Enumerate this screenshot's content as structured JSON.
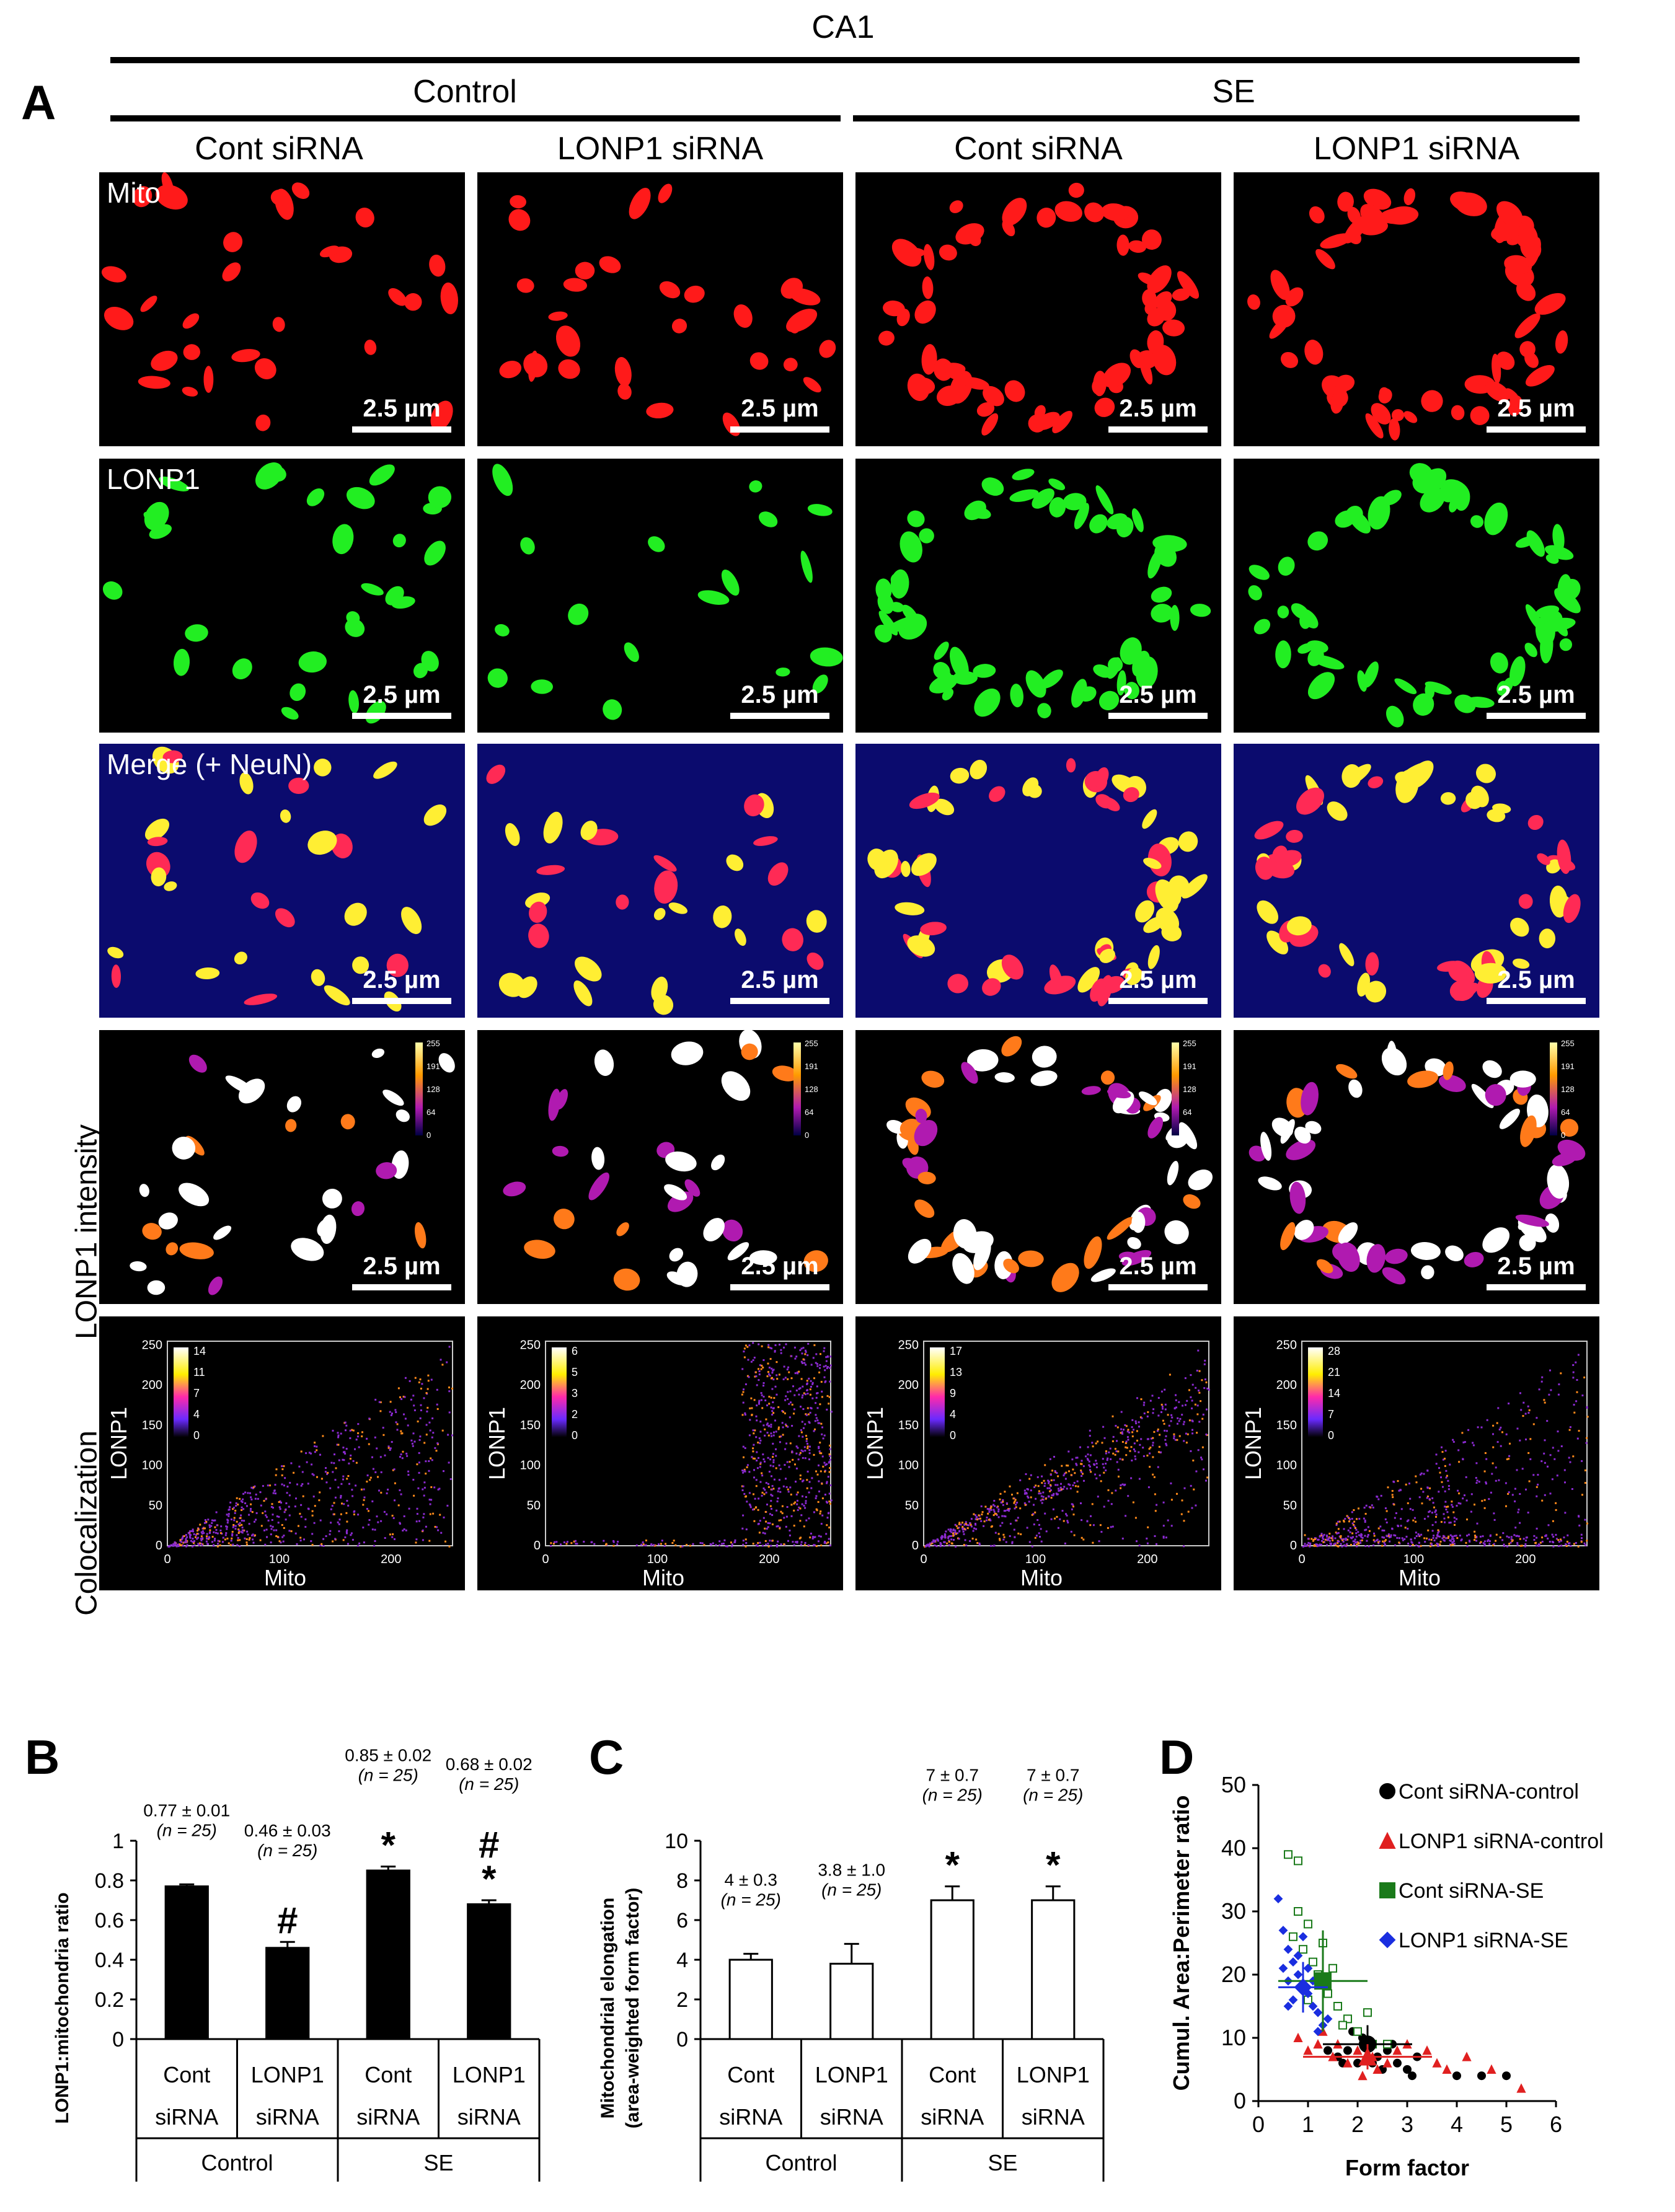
{
  "figure": {
    "region": "CA1",
    "panel_letter_a": "A",
    "groups": [
      "Control",
      "SE"
    ],
    "columns": [
      "Cont siRNA",
      "LONP1 siRNA",
      "Cont siRNA",
      "LONP1 siRNA"
    ],
    "channel_labels": {
      "mito": "Mito",
      "lonp1": "LONP1",
      "merge": "Merge (+ NeuN)"
    },
    "row_labels": {
      "intensity": "LONP1 intensity",
      "coloc": "Colocalization"
    },
    "scale_bar": "2.5 µm",
    "intensity_scale_ticks": [
      "255",
      "191",
      "128",
      "64",
      "0"
    ],
    "coloc_axes": {
      "xlabel": "Mito",
      "ylabel": "LONP1",
      "xticks": [
        "0",
        "100",
        "200"
      ],
      "yticks": [
        "250",
        "200",
        "150",
        "100",
        "50",
        "0"
      ]
    },
    "coloc_legends": [
      [
        "14",
        "11",
        "7",
        "4",
        "0"
      ],
      [
        "6",
        "5",
        "3",
        "2",
        "0"
      ],
      [
        "17",
        "13",
        "9",
        "4",
        "0"
      ],
      [
        "28",
        "21",
        "14",
        "7",
        "0"
      ]
    ],
    "colors": {
      "mito": "#ff1a1a",
      "lonp1": "#22ee22",
      "merge_bg": "#0b0b6e",
      "overlap": "#ffee33"
    }
  },
  "chart_data": [
    {
      "panel": "B",
      "type": "bar",
      "ylabel": "LONP1:mitochondria ratio",
      "ylim": [
        0,
        1
      ],
      "yticks": [
        "0",
        "0.2",
        "0.4",
        "0.6",
        "0.8",
        "1"
      ],
      "categories": [
        [
          "Cont",
          "siRNA"
        ],
        [
          "LONP1",
          "siRNA"
        ],
        [
          "Cont",
          "siRNA"
        ],
        [
          "LONP1",
          "siRNA"
        ]
      ],
      "groups": [
        "Control",
        "SE"
      ],
      "values": [
        0.77,
        0.46,
        0.85,
        0.68
      ],
      "errors": [
        0.01,
        0.03,
        0.02,
        0.02
      ],
      "annotations": [
        [
          "0.77 ± 0.01",
          "(n = 25)"
        ],
        [
          "0.46 ± 0.03",
          "(n = 25)"
        ],
        [
          "0.85 ± 0.02",
          "(n = 25)"
        ],
        [
          "0.68 ± 0.02",
          "(n = 25)"
        ]
      ],
      "significance": [
        "",
        "#",
        "*",
        "#*"
      ],
      "bar_color": "#000000"
    },
    {
      "panel": "C",
      "type": "bar",
      "ylabel": [
        "Mitochondrial elongation",
        "(area-weighted form factor)"
      ],
      "ylim": [
        0,
        10
      ],
      "yticks": [
        "0",
        "2",
        "4",
        "6",
        "8",
        "10"
      ],
      "categories": [
        [
          "Cont",
          "siRNA"
        ],
        [
          "LONP1",
          "siRNA"
        ],
        [
          "Cont",
          "siRNA"
        ],
        [
          "LONP1",
          "siRNA"
        ]
      ],
      "groups": [
        "Control",
        "SE"
      ],
      "values": [
        4.0,
        3.8,
        7.0,
        7.0
      ],
      "errors": [
        0.3,
        1.0,
        0.7,
        0.7
      ],
      "annotations": [
        [
          "4 ± 0.3",
          "(n = 25)"
        ],
        [
          "3.8 ± 1.0",
          "(n = 25)"
        ],
        [
          "7 ± 0.7",
          "(n = 25)"
        ],
        [
          "7 ± 0.7",
          "(n = 25)"
        ]
      ],
      "significance": [
        "",
        "",
        "*",
        "*"
      ],
      "bar_color": "#ffffff"
    },
    {
      "panel": "D",
      "type": "scatter",
      "xlabel": "Form factor",
      "ylabel": "Cumul. Area:Perimeter ratio",
      "xlim": [
        0,
        6
      ],
      "ylim": [
        0,
        50
      ],
      "xticks": [
        "0",
        "1",
        "2",
        "3",
        "4",
        "5",
        "6"
      ],
      "yticks": [
        "0",
        "10",
        "20",
        "30",
        "40",
        "50"
      ],
      "series": [
        {
          "name": "Cont siRNA-control",
          "color": "#000000",
          "marker": "circle",
          "mean": [
            2.2,
            9
          ],
          "err": [
            0.9,
            3
          ],
          "points": [
            [
              1.6,
              7
            ],
            [
              1.8,
              8
            ],
            [
              2.0,
              6
            ],
            [
              2.2,
              9
            ],
            [
              2.4,
              7
            ],
            [
              2.6,
              8
            ],
            [
              2.8,
              6
            ],
            [
              3.0,
              5
            ],
            [
              3.2,
              7
            ],
            [
              2.1,
              10
            ],
            [
              1.9,
              11
            ],
            [
              2.5,
              5
            ],
            [
              4.0,
              4
            ],
            [
              4.5,
              4
            ],
            [
              5.0,
              4
            ],
            [
              1.4,
              8
            ],
            [
              2.7,
              9
            ],
            [
              3.1,
              4
            ],
            [
              2.3,
              6
            ],
            [
              1.7,
              6
            ]
          ]
        },
        {
          "name": "LONP1 siRNA-control",
          "color": "#e02020",
          "marker": "triangle",
          "mean": [
            2.2,
            7
          ],
          "err": [
            1.3,
            2
          ],
          "points": [
            [
              0.8,
              10
            ],
            [
              1.0,
              8
            ],
            [
              1.2,
              9
            ],
            [
              1.5,
              7
            ],
            [
              1.8,
              6
            ],
            [
              2.0,
              8
            ],
            [
              2.3,
              7
            ],
            [
              2.6,
              6
            ],
            [
              3.0,
              9
            ],
            [
              3.4,
              8
            ],
            [
              3.8,
              5
            ],
            [
              4.2,
              7
            ],
            [
              4.7,
              5
            ],
            [
              5.3,
              2
            ],
            [
              1.3,
              11
            ],
            [
              2.1,
              4
            ],
            [
              2.8,
              8
            ],
            [
              3.6,
              6
            ],
            [
              1.6,
              9
            ],
            [
              2.4,
              5
            ]
          ]
        },
        {
          "name": "Cont siRNA-SE",
          "color": "#1a7a1a",
          "marker": "square",
          "mean": [
            1.3,
            19
          ],
          "err": [
            0.9,
            8
          ],
          "points": [
            [
              0.6,
              39
            ],
            [
              0.8,
              38
            ],
            [
              0.7,
              26
            ],
            [
              0.9,
              24
            ],
            [
              1.0,
              28
            ],
            [
              1.2,
              20
            ],
            [
              1.4,
              17
            ],
            [
              1.6,
              15
            ],
            [
              1.8,
              13
            ],
            [
              2.0,
              11
            ],
            [
              2.3,
              9
            ],
            [
              2.6,
              9
            ],
            [
              1.1,
              22
            ],
            [
              1.5,
              21
            ],
            [
              0.9,
              18
            ],
            [
              1.3,
              25
            ],
            [
              1.7,
              12
            ],
            [
              2.2,
              14
            ],
            [
              1.0,
              16
            ],
            [
              0.8,
              30
            ]
          ]
        },
        {
          "name": "LONP1 siRNA-SE",
          "color": "#1a2ee0",
          "marker": "diamond",
          "mean": [
            0.9,
            18
          ],
          "err": [
            0.5,
            4
          ],
          "points": [
            [
              0.4,
              32
            ],
            [
              0.5,
              27
            ],
            [
              0.6,
              24
            ],
            [
              0.7,
              22
            ],
            [
              0.8,
              20
            ],
            [
              0.9,
              18
            ],
            [
              1.0,
              17
            ],
            [
              1.1,
              15
            ],
            [
              1.2,
              14
            ],
            [
              1.3,
              12
            ],
            [
              0.6,
              19
            ],
            [
              0.8,
              23
            ],
            [
              1.0,
              21
            ],
            [
              1.2,
              11
            ],
            [
              0.7,
              16
            ],
            [
              0.9,
              26
            ],
            [
              1.4,
              13
            ],
            [
              0.5,
              21
            ],
            [
              1.1,
              19
            ],
            [
              0.6,
              15
            ]
          ]
        }
      ]
    }
  ]
}
